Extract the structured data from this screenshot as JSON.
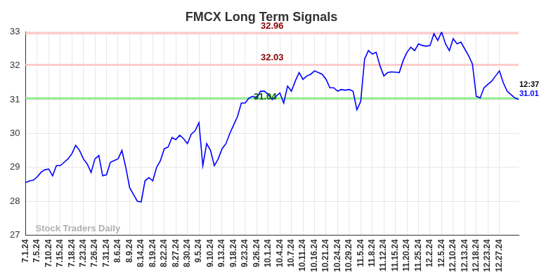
{
  "chart_data": {
    "type": "line",
    "title": "FMCX Long Term Signals",
    "watermark": "Stock Traders Daily",
    "categories": [
      "7.1.24",
      null,
      null,
      "7.5.24",
      null,
      null,
      "7.10.24",
      null,
      null,
      "7.15.24",
      null,
      null,
      "7.18.24",
      null,
      null,
      "7.23.24",
      null,
      null,
      "7.26.24",
      null,
      null,
      "7.31.24",
      null,
      null,
      "8.6.24",
      null,
      null,
      "8.9.24",
      null,
      null,
      "8.14.24",
      null,
      null,
      "8.19.24",
      null,
      null,
      "8.22.24",
      null,
      null,
      "8.27.24",
      null,
      null,
      "8.30.24",
      null,
      null,
      "9.5.24",
      null,
      null,
      "9.10.24",
      null,
      null,
      "9.13.24",
      null,
      null,
      "9.18.24",
      null,
      null,
      "9.23.24",
      null,
      null,
      "9.26.24",
      null,
      null,
      "10.1.24",
      null,
      null,
      "10.4.24",
      null,
      null,
      "10.7.24",
      null,
      null,
      "10.11.24",
      null,
      null,
      "10.16.24",
      null,
      null,
      "10.21.24",
      null,
      null,
      "10.24.24",
      null,
      null,
      "10.29.24",
      null,
      null,
      "11.5.24",
      null,
      null,
      "11.8.24",
      null,
      null,
      "11.12.24",
      null,
      null,
      "11.15.24",
      null,
      null,
      "11.20.24",
      null,
      null,
      "11.25.24",
      null,
      null,
      "12.2.24",
      null,
      null,
      "12.5.24",
      null,
      null,
      "12.10.24",
      null,
      null,
      "12.13.24",
      null,
      null,
      "12.18.24",
      null,
      null,
      "12.23.24",
      null,
      null,
      "12.27.24",
      null,
      null,
      null,
      null,
      null
    ],
    "series": [
      {
        "color": "#0000ff",
        "values": [
          28.55,
          28.6,
          28.62,
          28.72,
          28.85,
          28.93,
          28.95,
          28.75,
          29.05,
          29.05,
          29.15,
          29.25,
          29.4,
          29.65,
          29.5,
          29.25,
          29.1,
          28.85,
          29.25,
          29.35,
          28.75,
          28.78,
          29.15,
          29.2,
          29.25,
          29.5,
          29.0,
          28.4,
          28.2,
          28.0,
          27.98,
          28.6,
          28.7,
          28.6,
          29.0,
          29.2,
          29.55,
          29.6,
          29.88,
          29.82,
          29.95,
          29.85,
          29.7,
          29.98,
          30.08,
          30.32,
          29.05,
          29.7,
          29.5,
          29.05,
          29.25,
          29.55,
          29.7,
          30.0,
          30.25,
          30.5,
          30.9,
          30.9,
          31.05,
          31.1,
          31.05,
          31.25,
          31.25,
          31.15,
          31.0,
          31.1,
          31.2,
          30.9,
          31.4,
          31.25,
          31.55,
          31.8,
          31.6,
          31.7,
          31.75,
          31.85,
          31.8,
          31.75,
          31.6,
          31.35,
          31.35,
          31.25,
          31.3,
          31.28,
          31.3,
          31.25,
          30.7,
          30.95,
          32.2,
          32.45,
          32.35,
          32.4,
          32.0,
          31.7,
          31.8,
          31.82,
          31.81,
          31.8,
          32.15,
          32.4,
          32.55,
          32.45,
          32.65,
          32.6,
          32.58,
          32.6,
          32.95,
          32.75,
          33.0,
          32.65,
          32.45,
          32.8,
          32.65,
          32.7,
          32.5,
          32.3,
          32.05,
          31.1,
          31.05,
          31.35,
          31.45,
          31.55,
          31.7,
          31.85,
          31.5,
          31.25,
          31.15,
          31.05,
          31.01
        ]
      }
    ],
    "reference_lines": [
      {
        "value": 32.96,
        "label": "32.96",
        "color": "#ffcccc",
        "label_color": "#8b0000"
      },
      {
        "value": 32.03,
        "label": "32.03",
        "color": "#ffcccc",
        "label_color": "#8b0000"
      },
      {
        "value": 31.04,
        "label": "31.04",
        "color": "#90ee90",
        "label_color": "#006400"
      }
    ],
    "last_point": {
      "time_label": "12:37",
      "value": 31.01,
      "label": "31.01",
      "color": "#0000ff"
    },
    "ylim": [
      27,
      33
    ],
    "yticks": [
      27,
      28,
      29,
      30,
      31,
      32,
      33
    ],
    "grid": true
  }
}
